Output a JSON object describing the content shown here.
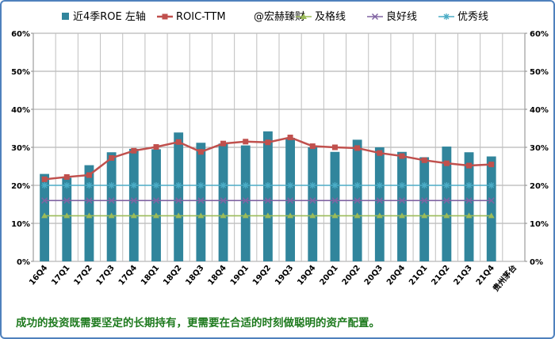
{
  "chart_data": {
    "type": "bar",
    "categories": [
      "16Q4",
      "17Q1",
      "17Q2",
      "17Q3",
      "17Q4",
      "18Q1",
      "18Q2",
      "18Q3",
      "18Q4",
      "19Q1",
      "19Q2",
      "19Q3",
      "19Q4",
      "20Q1",
      "20Q2",
      "20Q3",
      "20Q4",
      "21Q1",
      "21Q2",
      "21Q3",
      "21Q4"
    ],
    "extra_category": "贵州茅台",
    "y_axis": {
      "ylim": [
        0,
        60
      ],
      "ticks": [
        0,
        10,
        20,
        30,
        40,
        50,
        60
      ],
      "tick_labels": [
        "0%",
        "10%",
        "20%",
        "30%",
        "40%",
        "50%",
        "60%"
      ]
    },
    "y2_axis": {
      "ylim": [
        0,
        60
      ],
      "ticks": [
        0,
        10,
        20,
        30,
        40,
        50,
        60
      ],
      "tick_labels": [
        "0%",
        "10%",
        "20%",
        "30%",
        "40%",
        "50%",
        "60%"
      ]
    },
    "grid": true,
    "legend_position": "top",
    "series": [
      {
        "name": "近4季ROE 左轴",
        "kind": "bar",
        "color": "#31859c",
        "values": [
          23.0,
          22.0,
          25.3,
          28.7,
          29.6,
          29.5,
          33.9,
          31.2,
          31.0,
          30.5,
          34.2,
          32.5,
          30.0,
          28.8,
          32.0,
          30.0,
          28.8,
          27.4,
          30.2,
          28.7,
          27.6
        ]
      },
      {
        "name": "ROIC-TTM",
        "kind": "line",
        "color": "#c0504d",
        "values": [
          21.6,
          22.2,
          22.7,
          27.2,
          29.1,
          30.1,
          31.4,
          28.8,
          31.0,
          31.5,
          31.3,
          32.6,
          30.3,
          30.0,
          29.8,
          28.5,
          27.7,
          26.6,
          25.8,
          25.2,
          25.5
        ]
      },
      {
        "name": "及格线",
        "kind": "line",
        "color": "#9bbb59",
        "values": [
          12,
          12,
          12,
          12,
          12,
          12,
          12,
          12,
          12,
          12,
          12,
          12,
          12,
          12,
          12,
          12,
          12,
          12,
          12,
          12,
          12
        ]
      },
      {
        "name": "良好线",
        "kind": "line",
        "color": "#8064a2",
        "values": [
          16,
          16,
          16,
          16,
          16,
          16,
          16,
          16,
          16,
          16,
          16,
          16,
          16,
          16,
          16,
          16,
          16,
          16,
          16,
          16,
          16
        ]
      },
      {
        "name": "优秀线",
        "kind": "line",
        "color": "#4bacc6",
        "values": [
          20,
          20,
          20,
          20,
          20,
          20,
          20,
          20,
          20,
          20,
          20,
          20,
          20,
          20,
          20,
          20,
          20,
          20,
          20,
          20,
          20
        ]
      }
    ],
    "watermark": "@宏赫臻财"
  },
  "caption": "成功的投资既需要坚定的长期持有，更需要在合适的时刻做聪明的资产配置。"
}
